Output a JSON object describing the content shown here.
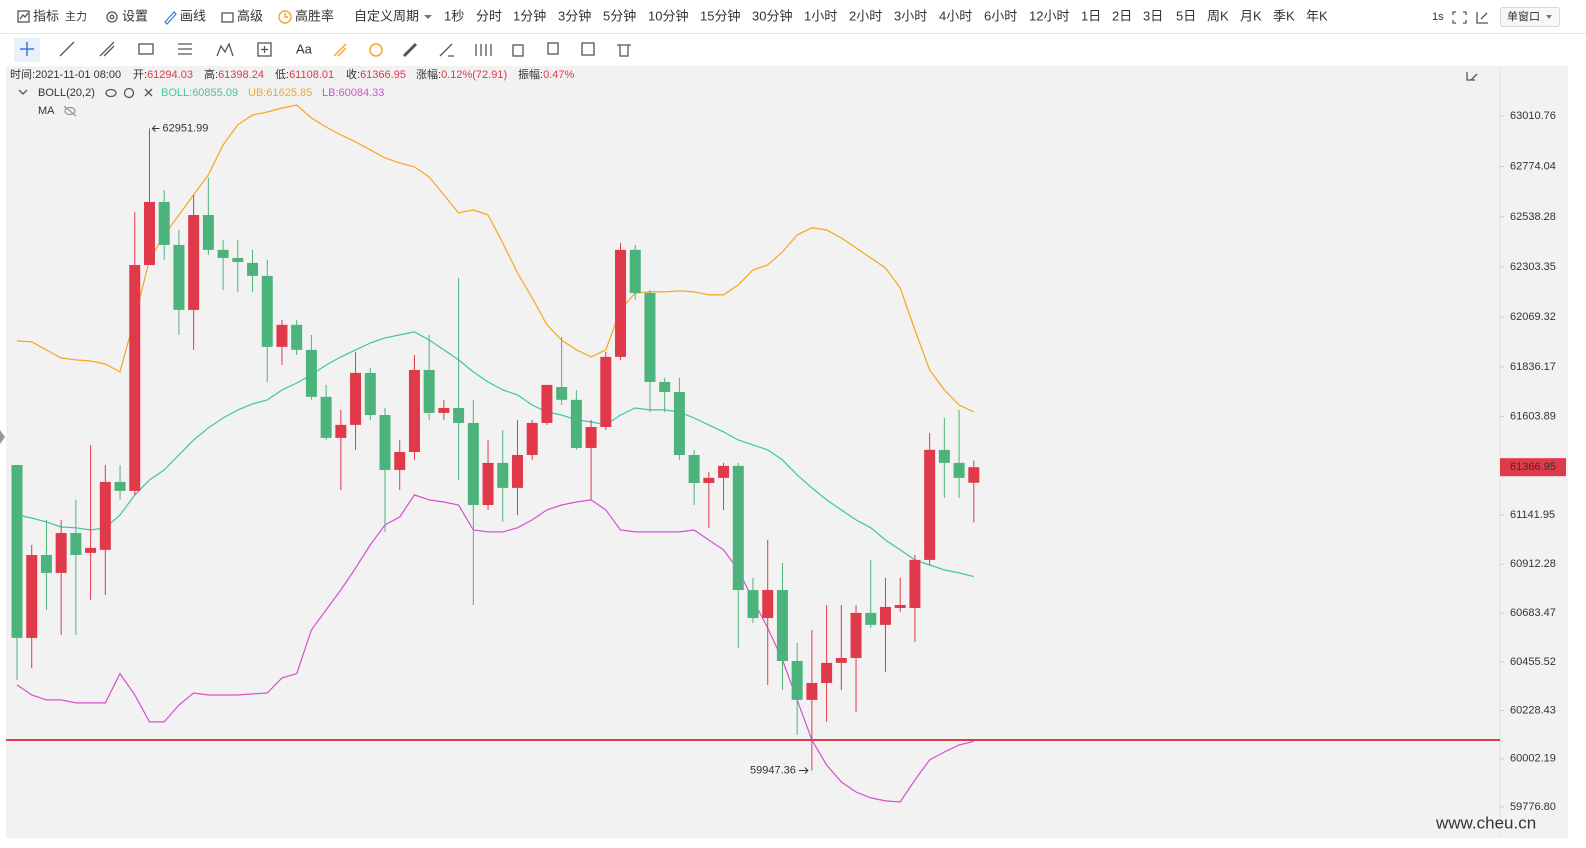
{
  "toolbar": {
    "indicator": "指标",
    "main": "主力",
    "settings": "设置",
    "draw": "画线",
    "advanced": "高级",
    "winrate": "高胜率",
    "custom_period": "自定义周期",
    "periods": [
      "1秒",
      "分时",
      "1分钟",
      "3分钟",
      "5分钟",
      "10分钟",
      "15分钟",
      "30分钟",
      "1小时",
      "2小时",
      "3小时",
      "4小时",
      "6小时",
      "12小时",
      "1日",
      "2日",
      "3日",
      "5日",
      "周K",
      "月K",
      "季K",
      "年K"
    ],
    "refresh": "1s",
    "window": "单窗口"
  },
  "drawing_toolbar": {
    "text_tool": "Aa"
  },
  "info": {
    "time_label": "时间:",
    "time": "2021-11-01 08:00",
    "open_label": "开:",
    "high_label": "高:",
    "low_label": "低:",
    "close_label": "收:",
    "change_label": "涨幅:",
    "change": "0.12%(72.91)",
    "amplitude_label": "振幅:",
    "amplitude": "0.47%"
  },
  "indicator": {
    "name": "BOLL(20,2)",
    "ma": "MA"
  },
  "chart_data": {
    "type": "candlestick",
    "open": [
      61377,
      60568,
      60956,
      60872,
      61059,
      60966,
      60980,
      61298,
      61256,
      62313,
      62608,
      62407,
      62103,
      62547,
      62384,
      62346,
      62323,
      62262,
      61930,
      62033,
      61916,
      61696,
      61504,
      61565,
      61808,
      61611,
      61354,
      61438,
      61822,
      61621,
      61644,
      61574,
      61190,
      61387,
      61270,
      61424,
      61574,
      61742,
      61682,
      61457,
      61555,
      61883,
      62384,
      62182,
      61766,
      61719,
      61424,
      61293,
      61317,
      61373,
      60792,
      60661,
      60792,
      60460,
      60278,
      60357,
      60451,
      60474,
      60685,
      60629,
      60708,
      60708,
      60933,
      61448,
      61387,
      61294.03
    ],
    "high": [
      61377,
      61003,
      61120,
      61120,
      61214,
      61471,
      61377,
      61377,
      62561,
      62951.99,
      62664,
      62477,
      62641,
      62721,
      62430,
      62430,
      62384,
      62337,
      62056,
      62056,
      61986,
      61752,
      61635,
      61906,
      61831,
      61644,
      61494,
      61892,
      61986,
      61682,
      62253,
      61682,
      61494,
      61541,
      61588,
      61588,
      61752,
      61976,
      61728,
      61588,
      61906,
      62416,
      62407,
      62196,
      61785,
      61785,
      61448,
      61345,
      61387,
      61387,
      60849,
      61026,
      60919,
      60544,
      60605,
      60722,
      60722,
      60722,
      60933,
      60849,
      60849,
      60956,
      61527,
      61597,
      61635,
      61398.24
    ],
    "low": [
      60371,
      60427,
      60699,
      60582,
      60582,
      60746,
      60769,
      61214,
      61237,
      62313,
      62337,
      61986,
      61916,
      62360,
      62196,
      62187,
      62187,
      61766,
      61845,
      61892,
      61682,
      61494,
      61260,
      61448,
      61588,
      61064,
      61260,
      61401,
      61588,
      61588,
      61307,
      60722,
      61167,
      61111,
      61143,
      61401,
      61565,
      61658,
      61448,
      61214,
      61541,
      61869,
      62150,
      61625,
      61625,
      61401,
      61190,
      61083,
      61167,
      60521,
      60638,
      60348,
      60324,
      60114,
      59947.36,
      60175,
      60324,
      60221,
      60615,
      60409,
      60689,
      60549,
      60909,
      61223,
      61223,
      61108.01
    ],
    "close": [
      60568,
      60956,
      60872,
      61059,
      60956,
      60989,
      61298,
      61256,
      62313,
      62608,
      62407,
      62103,
      62547,
      62384,
      62346,
      62327,
      62262,
      61930,
      62033,
      61916,
      61696,
      61504,
      61565,
      61808,
      61611,
      61354,
      61438,
      61822,
      61621,
      61644,
      61574,
      61190,
      61387,
      61270,
      61424,
      61574,
      61752,
      61682,
      61457,
      61555,
      61883,
      62384,
      62182,
      61766,
      61719,
      61424,
      61293,
      61317,
      61373,
      60792,
      60661,
      60792,
      60460,
      60278,
      60357,
      60451,
      60474,
      60685,
      60629,
      60713,
      60722,
      60933,
      61448,
      61387,
      61317,
      61366.95
    ],
    "up_color": "#e0394a",
    "down_color": "#4db37c",
    "lines": [
      {
        "name": "BOLL:",
        "color": "#3cc6a8",
        "values": [
          61143,
          61129,
          61111,
          61087,
          61083,
          61073,
          61083,
          61143,
          61237,
          61307,
          61354,
          61424,
          61494,
          61551,
          61597,
          61635,
          61663,
          61682,
          61728,
          61761,
          61799,
          61845,
          61883,
          61916,
          61948,
          61972,
          61986,
          62000,
          61962,
          61916,
          61869,
          61813,
          61766,
          61728,
          61705,
          61658,
          61625,
          61611,
          61588,
          61579,
          61565,
          61611,
          61644,
          61635,
          61635,
          61625,
          61597,
          61565,
          61532,
          61494,
          61471,
          61448,
          61401,
          61331,
          61270,
          61214,
          61167,
          61120,
          61083,
          61026,
          60980,
          60933,
          60909,
          60886,
          60872,
          60855.09
        ]
      },
      {
        "name": "UB:",
        "color": "#f5a623",
        "values": [
          61958,
          61953,
          61916,
          61878,
          61869,
          61864,
          61850,
          61813,
          62065,
          62337,
          62454,
          62547,
          62641,
          62735,
          62875,
          62969,
          63015,
          63029,
          63048,
          63062,
          63001,
          62959,
          62922,
          62889,
          62852,
          62814,
          62791,
          62772,
          62725,
          62641,
          62557,
          62571,
          62547,
          62416,
          62276,
          62159,
          62033,
          61962,
          61916,
          61883,
          61916,
          62103,
          62182,
          62187,
          62187,
          62192,
          62187,
          62173,
          62173,
          62220,
          62290,
          62313,
          62374,
          62454,
          62487,
          62477,
          62440,
          62393,
          62346,
          62299,
          62206,
          62009,
          61822,
          61728,
          61658,
          61625.85
        ]
      },
      {
        "name": "LB:",
        "color": "#d84fd0",
        "values": [
          60348,
          60301,
          60278,
          60278,
          60264,
          60264,
          60264,
          60401,
          60301,
          60175,
          60175,
          60254,
          60310,
          60301,
          60301,
          60301,
          60306,
          60310,
          60381,
          60401,
          60605,
          60699,
          60792,
          60895,
          61003,
          61097,
          61134,
          61237,
          61214,
          61204,
          61190,
          61073,
          61064,
          61064,
          61083,
          61120,
          61167,
          61190,
          61204,
          61214,
          61167,
          61073,
          61064,
          61064,
          61064,
          61064,
          61073,
          61026,
          60980,
          60886,
          60746,
          60615,
          60465,
          60278,
          60090,
          59973,
          59894,
          59847,
          59819,
          59805,
          59800,
          59903,
          59997,
          60034,
          60067,
          60084.33
        ]
      }
    ],
    "hlines": [
      {
        "value": 60090,
        "color": "#e0394a"
      }
    ],
    "ylim": [
      59669,
      63235
    ],
    "yticks": [
      63010.76,
      62774.04,
      62538.28,
      62303.35,
      62069.32,
      61836.17,
      61603.89,
      61141.95,
      60912.28,
      60683.47,
      60455.52,
      60228.43,
      60002.19,
      {
        "value": 59776.8,
        "label": "59776.80"
      }
    ]
  },
  "watermark": "www.cheu.cn"
}
